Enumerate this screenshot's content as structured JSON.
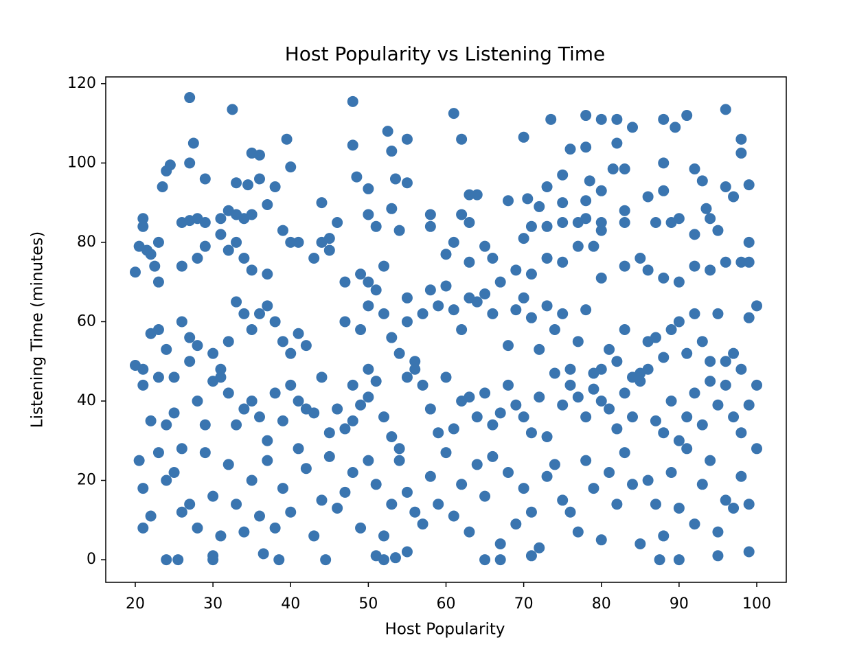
{
  "chart_data": {
    "type": "scatter",
    "title": "Host Popularity vs Listening Time",
    "x_label": "Host Popularity",
    "y_label": "Listening Time (minutes)",
    "color": "#3a75b0",
    "xlim": [
      16.2,
      103.8
    ],
    "ylim": [
      -5.7,
      121.7
    ],
    "xticks": [
      20,
      30,
      40,
      50,
      60,
      70,
      80,
      90,
      100
    ],
    "yticks": [
      0,
      20,
      40,
      60,
      80,
      100,
      120
    ],
    "x": [
      27,
      32.5,
      48,
      61,
      78,
      80,
      82,
      91,
      96,
      73.5,
      88,
      89.5,
      84,
      52.5,
      55,
      62,
      70,
      98,
      27.5,
      39.5,
      48,
      76,
      78,
      82,
      35,
      36,
      53,
      98,
      24,
      24.5,
      27,
      40,
      88,
      92,
      81.5,
      83,
      75,
      50,
      48.5,
      23.5,
      29,
      33,
      34.5,
      36,
      38,
      53.5,
      55,
      63,
      64,
      73,
      78.5,
      80,
      86,
      88,
      93,
      96,
      99,
      97,
      37,
      44,
      53,
      68,
      70.5,
      72,
      75,
      78,
      93.5,
      21,
      21,
      26,
      27,
      28,
      29,
      31,
      32,
      33,
      34,
      35,
      41,
      46,
      50,
      51,
      54,
      58,
      58,
      62,
      63,
      70,
      71,
      73,
      75,
      77,
      78,
      80,
      80,
      83,
      83,
      87,
      89,
      90,
      92,
      94,
      95,
      99,
      44,
      45,
      23,
      20,
      20.5,
      21.5,
      22,
      22.5,
      23,
      26,
      28,
      29,
      31,
      32,
      33,
      34,
      35,
      37,
      39,
      40,
      43,
      45,
      47,
      49,
      50,
      52,
      55,
      60,
      61,
      63,
      65,
      66,
      69,
      71,
      73,
      75,
      77,
      79,
      80,
      83,
      85,
      86,
      88,
      90,
      92,
      94,
      96,
      98,
      99,
      21,
      22,
      23,
      24,
      25,
      26,
      27,
      27,
      28,
      30,
      31,
      32,
      33,
      34,
      35,
      36,
      37,
      38,
      39,
      40,
      41,
      42,
      44,
      47,
      49,
      50,
      51,
      52,
      53,
      54,
      55,
      56,
      57,
      58,
      59,
      60,
      61,
      62,
      63,
      64,
      65,
      66,
      67,
      68,
      69,
      70,
      71,
      72,
      73,
      74,
      75,
      76,
      77,
      78,
      79,
      80,
      81,
      82,
      83,
      84,
      85,
      86,
      87,
      88,
      89,
      90,
      91,
      92,
      93,
      94,
      95,
      96,
      97,
      98,
      99,
      100,
      20,
      21,
      22,
      23,
      24,
      25,
      26,
      28,
      29,
      30,
      31,
      32,
      33,
      34,
      35,
      36,
      37,
      38,
      39,
      40,
      41,
      42,
      43,
      45,
      46,
      47,
      48,
      49,
      50,
      51,
      52,
      53,
      54,
      55,
      56,
      57,
      58,
      59,
      60,
      61,
      62,
      63,
      64,
      65,
      66,
      67,
      68,
      69,
      70,
      71,
      72,
      73,
      74,
      75,
      76,
      77,
      78,
      79,
      80,
      81,
      82,
      83,
      84,
      85,
      86,
      87,
      88,
      89,
      90,
      91,
      92,
      93,
      94,
      95,
      96,
      97,
      98,
      99,
      100,
      50,
      48,
      20.5,
      21,
      21,
      22,
      23,
      24,
      25,
      26,
      27,
      28,
      29,
      30,
      31,
      32,
      33,
      34,
      35,
      36,
      37,
      38,
      39,
      40,
      41,
      42,
      43,
      44,
      45,
      46,
      47,
      48,
      49,
      50,
      51,
      52,
      53,
      54,
      55,
      56,
      57,
      58,
      59,
      60,
      61,
      62,
      63,
      64,
      65,
      66,
      67,
      68,
      69,
      70,
      71,
      72,
      73,
      74,
      75,
      76,
      77,
      78,
      79,
      80,
      81,
      82,
      83,
      84,
      85,
      86,
      87,
      88,
      89,
      90,
      91,
      92,
      93,
      94,
      95,
      96,
      97,
      98,
      99,
      100,
      24,
      25.5,
      30,
      30,
      38.5,
      44.5,
      51,
      52,
      53.5,
      55,
      65,
      67,
      71,
      87.5,
      90,
      95,
      99,
      36.5
    ],
    "values": [
      116.5,
      113.5,
      115.5,
      112.5,
      112,
      111,
      111,
      112,
      113.5,
      111,
      111,
      109,
      109,
      108,
      106,
      106,
      106.5,
      106,
      105,
      106,
      104.5,
      103.5,
      104,
      105,
      102.5,
      102,
      103,
      102.5,
      98,
      99.5,
      100,
      99,
      100,
      98.5,
      98.5,
      98.5,
      97,
      93.5,
      96.5,
      94,
      96,
      95,
      94.5,
      96,
      94,
      96,
      95,
      92,
      92,
      94,
      95.5,
      93,
      91.5,
      93,
      95.5,
      94,
      94.5,
      91.5,
      89.5,
      90,
      88.5,
      90.5,
      91,
      89,
      90,
      90.5,
      88.5,
      86,
      84,
      85,
      85.5,
      86,
      85,
      86,
      88,
      87,
      86,
      87,
      80,
      85,
      87,
      84,
      83,
      87,
      84,
      87,
      85,
      81,
      84,
      84,
      85,
      85,
      86,
      85,
      83,
      88,
      85,
      85,
      85,
      86,
      82,
      86,
      83,
      80,
      80,
      81,
      80,
      72.5,
      79,
      78,
      77,
      74,
      70,
      74,
      76,
      79,
      82,
      78,
      80,
      76,
      73,
      72,
      83,
      80,
      76,
      78,
      70,
      72,
      70,
      74,
      66,
      77,
      80,
      75,
      79,
      76,
      73,
      72,
      76,
      75,
      79,
      79,
      71,
      74,
      76,
      73,
      71,
      70,
      74,
      73,
      75,
      75,
      75,
      48,
      57,
      58,
      53,
      46,
      60,
      56,
      50,
      54,
      52,
      48,
      55,
      65,
      62,
      58,
      62,
      64,
      60,
      55,
      52,
      57,
      54,
      46,
      60,
      58,
      64,
      68,
      62,
      56,
      52,
      60,
      50,
      62,
      68,
      64,
      69,
      63,
      58,
      66,
      65,
      67,
      62,
      70,
      54,
      63,
      66,
      61,
      53,
      64,
      58,
      62,
      48,
      55,
      63,
      47,
      48,
      53,
      50,
      58,
      46,
      45,
      55,
      56,
      51,
      58,
      60,
      52,
      62,
      55,
      50,
      62,
      50,
      52,
      48,
      61,
      64,
      49,
      44,
      35,
      46,
      34,
      37,
      28,
      40,
      34,
      45,
      46,
      42,
      34,
      38,
      40,
      36,
      30,
      42,
      35,
      44,
      40,
      38,
      37,
      32,
      38,
      33,
      44,
      39,
      41,
      45,
      36,
      31,
      28,
      46,
      48,
      44,
      38,
      32,
      46,
      33,
      40,
      41,
      36,
      42,
      34,
      37,
      44,
      39,
      36,
      32,
      41,
      31,
      47,
      39,
      44,
      41,
      36,
      43,
      40,
      38,
      33,
      42,
      36,
      47,
      48,
      35,
      32,
      40,
      30,
      36,
      42,
      34,
      45,
      39,
      44,
      36,
      32,
      39,
      44,
      48,
      35,
      25,
      18,
      8,
      11,
      27,
      20,
      22,
      12,
      14,
      8,
      27,
      16,
      6,
      24,
      14,
      7,
      20,
      11,
      25,
      8,
      18,
      12,
      28,
      23,
      6,
      15,
      26,
      13,
      17,
      22,
      8,
      25,
      19,
      6,
      14,
      25,
      17,
      12,
      9,
      21,
      14,
      27,
      11,
      19,
      7,
      24,
      16,
      26,
      4,
      22,
      9,
      18,
      12,
      3,
      21,
      24,
      15,
      12,
      7,
      25,
      18,
      5,
      22,
      14,
      27,
      19,
      4,
      20,
      14,
      6,
      22,
      13,
      28,
      9,
      19,
      25,
      7,
      15,
      13,
      21,
      14,
      28,
      0,
      0,
      0,
      1,
      0,
      0,
      1,
      0,
      0.5,
      2,
      0,
      0,
      1,
      0,
      0,
      1,
      2,
      1.5
    ]
  }
}
